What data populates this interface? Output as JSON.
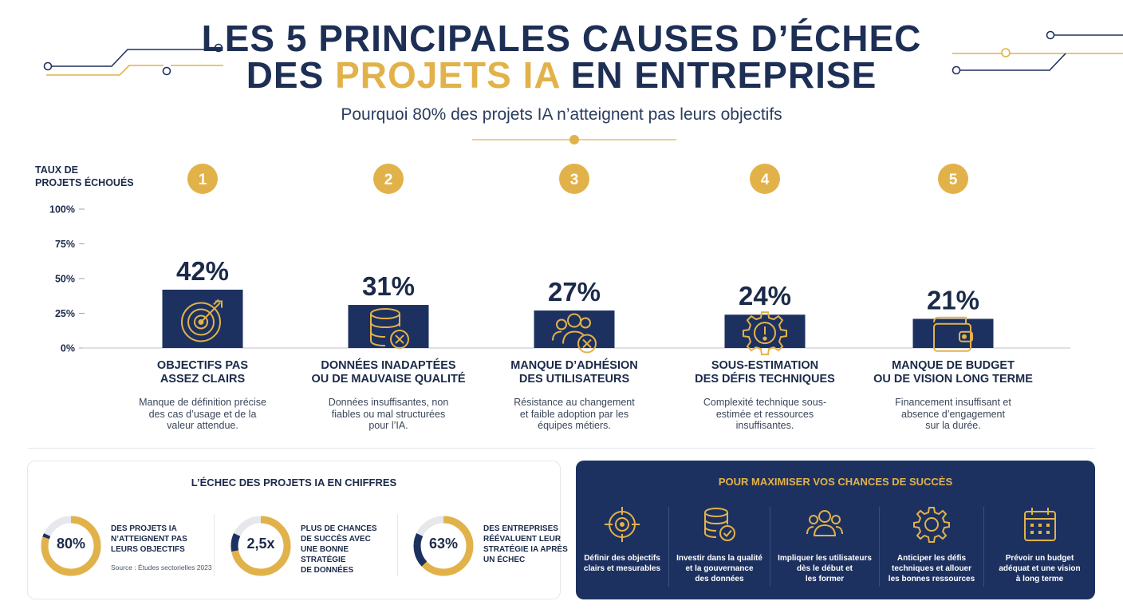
{
  "header": {
    "title_line1": "LES 5 PRINCIPALES CAUSES D’ÉCHEC",
    "title_line2_part1": "DES ",
    "title_line2_accent": "PROJETS IA",
    "title_line2_part2": " EN ENTREPRISE",
    "subtitle": "Pourquoi 80% des projets IA n’atteignent pas leurs objectifs"
  },
  "colors": {
    "navy": "#1d3160",
    "gold": "#e2b24a",
    "text": "#1b2a4a"
  },
  "chart_data": {
    "type": "bar",
    "ylabel": "TAUX DE PROJETS ÉCHOUÉS",
    "ylim": [
      0,
      100
    ],
    "y_ticks": [
      "0%",
      "25%",
      "50%",
      "75%",
      "100%"
    ],
    "y_tick_values": [
      0,
      25,
      50,
      75,
      100
    ],
    "grid": false,
    "categories": [
      "OBJECTIFS PAS ASSEZ CLAIRS",
      "DONNÉES INADAPTÉES OU DE MAUVAISE QUALITÉ",
      "MANQUE D’ADHÉSION DES UTILISATEURS",
      "SOUS-ESTIMATION DES DÉFIS TECHNIQUES",
      "MANQUE DE BUDGET OU DE VISION LONG TERME"
    ],
    "values": [
      42,
      31,
      27,
      24,
      21
    ],
    "data_labels": [
      "42%",
      "31%",
      "27%",
      "24%",
      "21%"
    ],
    "ranks": [
      "1",
      "2",
      "3",
      "4",
      "5"
    ],
    "icons": [
      "target-icon",
      "database-x-icon",
      "users-x-icon",
      "gear-alert-icon",
      "wallet-icon"
    ]
  },
  "causes": [
    {
      "title1": "OBJECTIFS PAS",
      "title2": "ASSEZ CLAIRS",
      "desc1": "Manque de définition précise",
      "desc2": "des cas d’usage et de la",
      "desc3": "valeur attendue."
    },
    {
      "title1": "DONNÉES INADAPTÉES",
      "title2": "OU DE MAUVAISE QUALITÉ",
      "desc1": "Données insuffisantes, non",
      "desc2": "fiables ou mal structurées",
      "desc3": "pour l’IA."
    },
    {
      "title1": "MANQUE D’ADHÉSION",
      "title2": "DES UTILISATEURS",
      "desc1": "Résistance au changement",
      "desc2": "et faible adoption par les",
      "desc3": "équipes métiers."
    },
    {
      "title1": "SOUS-ESTIMATION",
      "title2": "DES DÉFIS TECHNIQUES",
      "desc1": "Complexité technique sous-",
      "desc2": "estimée et ressources",
      "desc3": "insuffisantes."
    },
    {
      "title1": "MANQUE DE BUDGET",
      "title2": "OU DE VISION LONG TERME",
      "desc1": "Financement insuffisant et",
      "desc2": "absence d’engagement",
      "desc3": "sur la durée."
    }
  ],
  "stats": {
    "title": "L’ÉCHEC DES PROJETS IA EN CHIFFRES",
    "items": [
      {
        "value": "80%",
        "fill": 0.8,
        "l1": "DES PROJETS IA",
        "l2": "N’ATTEIGNENT PAS",
        "l3": "LEURS OBJECTIFS",
        "l4": ""
      },
      {
        "value": "2,5x",
        "fill": 0.72,
        "l1": "PLUS DE CHANCES",
        "l2": "DE SUCCÈS AVEC",
        "l3": "UNE BONNE STRATÉGIE",
        "l4": "DE DONNÉES"
      },
      {
        "value": "63%",
        "fill": 0.63,
        "l1": "DES ENTREPRISES",
        "l2": "RÉÉVALUENT LEUR",
        "l3": "STRATÉGIE IA APRÈS",
        "l4": "UN ÉCHEC"
      }
    ],
    "source": "Source : Études sectorielles 2023"
  },
  "success": {
    "title": "POUR MAXIMISER VOS CHANCES DE SUCCÈS",
    "tips": [
      {
        "icon": "crosshair-icon",
        "l1": "Définir des objectifs",
        "l2": "clairs et mesurables",
        "l3": ""
      },
      {
        "icon": "database-check-icon",
        "l1": "Investir dans la qualité",
        "l2": "et la gouvernance",
        "l3": "des données"
      },
      {
        "icon": "users-icon",
        "l1": "Impliquer les utilisateurs",
        "l2": "dès le début et",
        "l3": "les former"
      },
      {
        "icon": "gear-icon",
        "l1": "Anticiper les défis",
        "l2": "techniques et allouer",
        "l3": "les bonnes ressources"
      },
      {
        "icon": "calendar-icon",
        "l1": "Prévoir un budget",
        "l2": "adéquat et une vision",
        "l3": "à long terme"
      }
    ]
  }
}
